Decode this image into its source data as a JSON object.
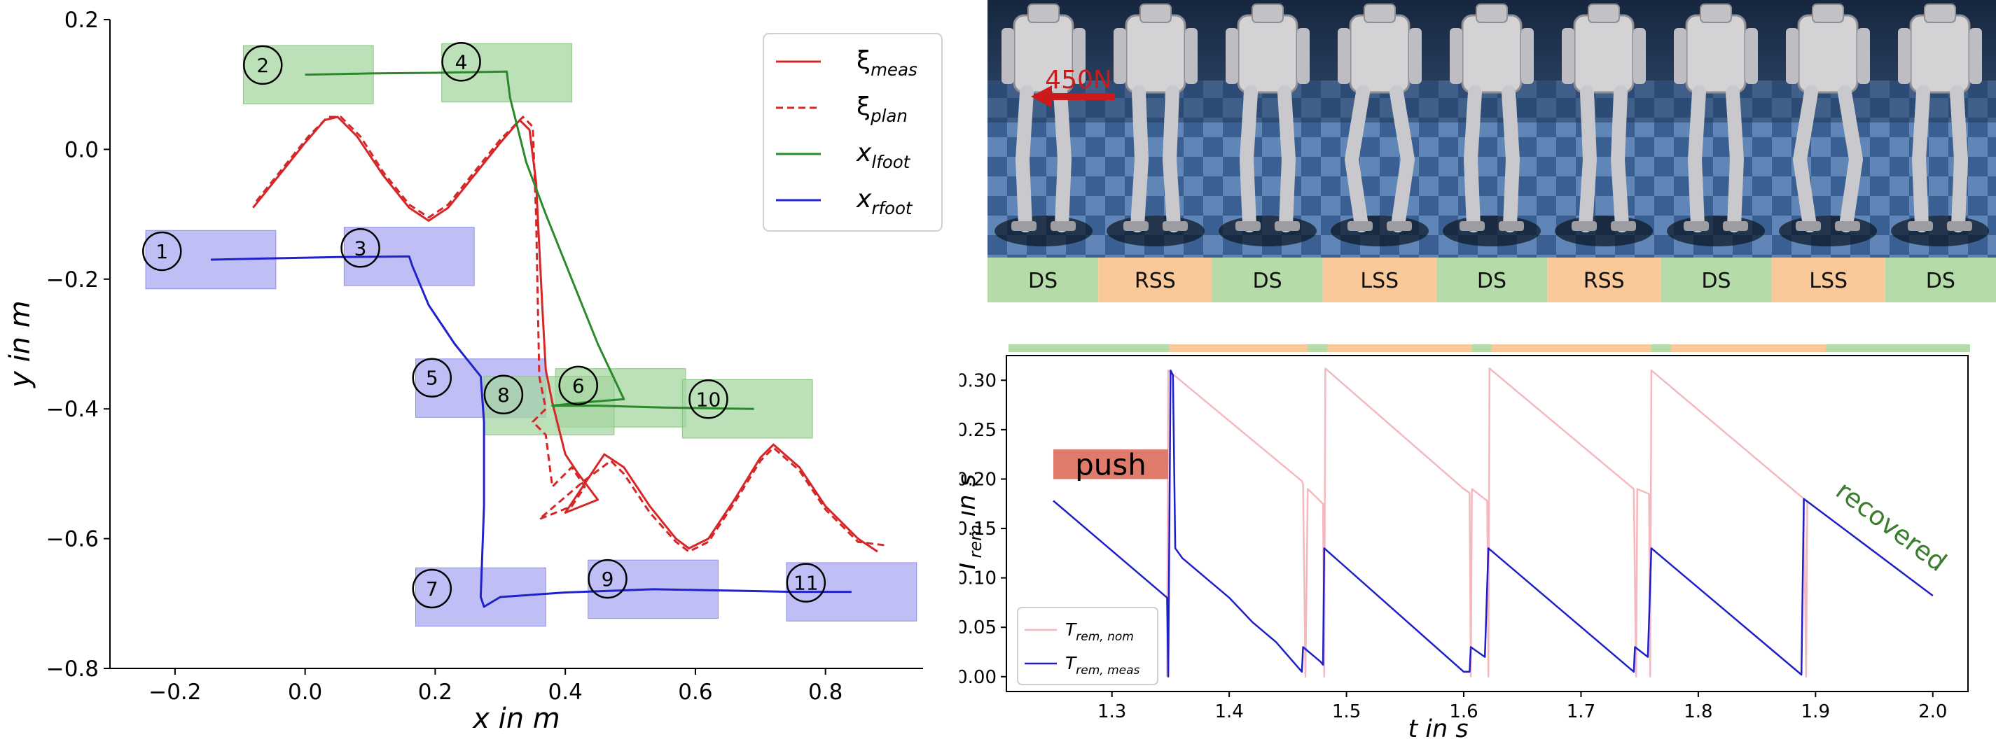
{
  "colors": {
    "meas": "#d62728",
    "plan": "#d62728",
    "lfoot": "#2a8a2a",
    "rfoot": "#2222cc",
    "ds_band": "#b5dba8",
    "ss_band": "#f9c99a",
    "step_green": "#a6d6a0",
    "step_blue": "#aaaaf2",
    "nom": "#f4b8bf",
    "measT": "#1f1fc8",
    "push": "#e07a6a",
    "recovered": "#3a7d2c",
    "force": "#cc1a1a"
  },
  "chart_data": [
    {
      "type": "line",
      "title": "",
      "xlabel": "x in m",
      "ylabel": "y in m",
      "xlim": [
        -0.3,
        0.95
      ],
      "ylim": [
        -0.8,
        0.2
      ],
      "xticks": [
        -0.2,
        0.0,
        0.2,
        0.4,
        0.6,
        0.8
      ],
      "xtick_labels": [
        "−0.2",
        "0.0",
        "0.2",
        "0.4",
        "0.6",
        "0.8"
      ],
      "yticks": [
        0.2,
        0.0,
        -0.2,
        -0.4,
        -0.6,
        -0.8
      ],
      "ytick_labels": [
        "0.2",
        "0.0",
        "−0.2",
        "−0.4",
        "−0.6",
        "−0.8"
      ],
      "legend": {
        "position": "top-right",
        "entries": [
          {
            "id": "meas",
            "label": "ξ",
            "sub": "meas",
            "style": "solid"
          },
          {
            "id": "plan",
            "label": "ξ",
            "sub": "plan",
            "style": "dashed"
          },
          {
            "id": "lfoot",
            "label": "x",
            "sub": "lfoot",
            "style": "solid"
          },
          {
            "id": "rfoot",
            "label": "x",
            "sub": "rfoot",
            "style": "solid"
          }
        ]
      },
      "footsteps": [
        {
          "n": "1",
          "foot": "r",
          "cx": -0.145,
          "cy": -0.17,
          "lx": -0.22,
          "ly": -0.157
        },
        {
          "n": "2",
          "foot": "l",
          "cx": 0.005,
          "cy": 0.115,
          "lx": -0.065,
          "ly": 0.13
        },
        {
          "n": "3",
          "foot": "r",
          "cx": 0.16,
          "cy": -0.165,
          "lx": 0.085,
          "ly": -0.152
        },
        {
          "n": "4",
          "foot": "l",
          "cx": 0.31,
          "cy": 0.118,
          "lx": 0.24,
          "ly": 0.135
        },
        {
          "n": "5",
          "foot": "r",
          "cx": 0.27,
          "cy": -0.368,
          "lx": 0.195,
          "ly": -0.352
        },
        {
          "n": "6",
          "foot": "l",
          "cx": 0.485,
          "cy": -0.383,
          "lx": 0.42,
          "ly": -0.364
        },
        {
          "n": "7",
          "foot": "r",
          "cx": 0.27,
          "cy": -0.69,
          "lx": 0.195,
          "ly": -0.677
        },
        {
          "n": "8",
          "foot": "l",
          "cx": 0.375,
          "cy": -0.395,
          "lx": 0.305,
          "ly": -0.378
        },
        {
          "n": "9",
          "foot": "r",
          "cx": 0.535,
          "cy": -0.678,
          "lx": 0.465,
          "ly": -0.662
        },
        {
          "n": "10",
          "foot": "l",
          "cx": 0.68,
          "cy": -0.4,
          "lx": 0.62,
          "ly": -0.385
        },
        {
          "n": "11",
          "foot": "r",
          "cx": 0.84,
          "cy": -0.682,
          "lx": 0.77,
          "ly": -0.668
        }
      ],
      "series": [
        {
          "name": "xi_meas",
          "color": "meas",
          "dash": false,
          "points": [
            [
              -0.08,
              -0.09
            ],
            [
              -0.04,
              -0.04
            ],
            [
              0.0,
              0.01
            ],
            [
              0.03,
              0.045
            ],
            [
              0.05,
              0.05
            ],
            [
              0.08,
              0.02
            ],
            [
              0.12,
              -0.04
            ],
            [
              0.16,
              -0.09
            ],
            [
              0.19,
              -0.11
            ],
            [
              0.22,
              -0.09
            ],
            [
              0.26,
              -0.04
            ],
            [
              0.3,
              0.01
            ],
            [
              0.33,
              0.045
            ],
            [
              0.345,
              0.03
            ],
            [
              0.355,
              -0.05
            ],
            [
              0.36,
              -0.15
            ],
            [
              0.365,
              -0.25
            ],
            [
              0.37,
              -0.34
            ],
            [
              0.38,
              -0.39
            ],
            [
              0.39,
              -0.43
            ],
            [
              0.4,
              -0.47
            ],
            [
              0.42,
              -0.5
            ],
            [
              0.45,
              -0.54
            ],
            [
              0.4,
              -0.56
            ],
            [
              0.44,
              -0.5
            ],
            [
              0.46,
              -0.47
            ],
            [
              0.49,
              -0.49
            ],
            [
              0.53,
              -0.55
            ],
            [
              0.57,
              -0.6
            ],
            [
              0.59,
              -0.615
            ],
            [
              0.62,
              -0.6
            ],
            [
              0.66,
              -0.54
            ],
            [
              0.7,
              -0.475
            ],
            [
              0.72,
              -0.455
            ],
            [
              0.76,
              -0.49
            ],
            [
              0.8,
              -0.55
            ],
            [
              0.85,
              -0.6
            ],
            [
              0.88,
              -0.62
            ]
          ]
        },
        {
          "name": "xi_plan",
          "color": "plan",
          "dash": true,
          "points": [
            [
              -0.075,
              -0.08
            ],
            [
              -0.035,
              -0.03
            ],
            [
              0.005,
              0.02
            ],
            [
              0.035,
              0.05
            ],
            [
              0.055,
              0.05
            ],
            [
              0.085,
              0.02
            ],
            [
              0.12,
              -0.035
            ],
            [
              0.16,
              -0.085
            ],
            [
              0.19,
              -0.105
            ],
            [
              0.22,
              -0.085
            ],
            [
              0.26,
              -0.035
            ],
            [
              0.3,
              0.015
            ],
            [
              0.335,
              0.05
            ],
            [
              0.35,
              0.035
            ],
            [
              0.355,
              -0.1
            ],
            [
              0.36,
              -0.35
            ],
            [
              0.37,
              -0.4
            ],
            [
              0.35,
              -0.42
            ],
            [
              0.37,
              -0.44
            ],
            [
              0.38,
              -0.52
            ],
            [
              0.41,
              -0.49
            ],
            [
              0.43,
              -0.52
            ],
            [
              0.41,
              -0.55
            ],
            [
              0.36,
              -0.57
            ],
            [
              0.43,
              -0.51
            ],
            [
              0.47,
              -0.48
            ],
            [
              0.49,
              -0.5
            ],
            [
              0.53,
              -0.56
            ],
            [
              0.57,
              -0.605
            ],
            [
              0.59,
              -0.62
            ],
            [
              0.62,
              -0.605
            ],
            [
              0.66,
              -0.545
            ],
            [
              0.7,
              -0.48
            ],
            [
              0.72,
              -0.46
            ],
            [
              0.76,
              -0.495
            ],
            [
              0.8,
              -0.555
            ],
            [
              0.85,
              -0.605
            ],
            [
              0.89,
              -0.61
            ]
          ]
        },
        {
          "name": "x_lfoot",
          "color": "lfoot",
          "dash": false,
          "points": [
            [
              0.0,
              0.115
            ],
            [
              0.1,
              0.117
            ],
            [
              0.2,
              0.118
            ],
            [
              0.31,
              0.12
            ],
            [
              0.315,
              0.08
            ],
            [
              0.34,
              -0.02
            ],
            [
              0.37,
              -0.1
            ],
            [
              0.41,
              -0.2
            ],
            [
              0.45,
              -0.3
            ],
            [
              0.49,
              -0.385
            ],
            [
              0.43,
              -0.39
            ],
            [
              0.38,
              -0.395
            ],
            [
              0.45,
              -0.395
            ],
            [
              0.55,
              -0.398
            ],
            [
              0.69,
              -0.4
            ]
          ]
        },
        {
          "name": "x_rfoot",
          "color": "rfoot",
          "dash": false,
          "points": [
            [
              -0.145,
              -0.17
            ],
            [
              -0.05,
              -0.168
            ],
            [
              0.05,
              -0.166
            ],
            [
              0.16,
              -0.165
            ],
            [
              0.165,
              -0.18
            ],
            [
              0.19,
              -0.24
            ],
            [
              0.23,
              -0.3
            ],
            [
              0.27,
              -0.35
            ],
            [
              0.275,
              -0.42
            ],
            [
              0.275,
              -0.55
            ],
            [
              0.27,
              -0.69
            ],
            [
              0.275,
              -0.705
            ],
            [
              0.3,
              -0.69
            ],
            [
              0.4,
              -0.683
            ],
            [
              0.535,
              -0.678
            ],
            [
              0.65,
              -0.68
            ],
            [
              0.75,
              -0.682
            ],
            [
              0.84,
              -0.682
            ]
          ]
        }
      ]
    },
    {
      "type": "line",
      "title": "",
      "xlabel": "t in s",
      "ylabel": "T",
      "ylabel_sub": "rem",
      "ylabel_rest": " in s",
      "xlim": [
        1.21,
        2.03
      ],
      "ylim": [
        -0.015,
        0.325
      ],
      "xticks": [
        1.3,
        1.4,
        1.5,
        1.6,
        1.7,
        1.8,
        1.9,
        2.0
      ],
      "xtick_labels": [
        "1.3",
        "1.4",
        "1.5",
        "1.6",
        "1.7",
        "1.8",
        "1.9",
        "2.0"
      ],
      "yticks": [
        0.0,
        0.05,
        0.1,
        0.15,
        0.2,
        0.25,
        0.3
      ],
      "ytick_labels": [
        "0.00",
        "0.05",
        "0.10",
        "0.15",
        "0.20",
        "0.25",
        "0.30"
      ],
      "phase_bar": [
        {
          "t0": 1.21,
          "t1": 1.347,
          "phase": "ds"
        },
        {
          "t0": 1.347,
          "t1": 1.465,
          "phase": "ss"
        },
        {
          "t0": 1.465,
          "t1": 1.482,
          "phase": "ds"
        },
        {
          "t0": 1.482,
          "t1": 1.605,
          "phase": "ss"
        },
        {
          "t0": 1.605,
          "t1": 1.622,
          "phase": "ds"
        },
        {
          "t0": 1.622,
          "t1": 1.758,
          "phase": "ss"
        },
        {
          "t0": 1.758,
          "t1": 1.775,
          "phase": "ds"
        },
        {
          "t0": 1.775,
          "t1": 1.907,
          "phase": "ss"
        },
        {
          "t0": 1.907,
          "t1": 2.03,
          "phase": "ds"
        }
      ],
      "legend": {
        "position": "bottom-left",
        "entries": [
          {
            "id": "nom",
            "label": "T",
            "sub": "rem, nom"
          },
          {
            "id": "measT",
            "label": "T",
            "sub": "rem, meas"
          }
        ]
      },
      "annotation_push": {
        "text": "push",
        "t0": 1.25,
        "t1": 1.348,
        "v0": 0.2,
        "v1": 0.23
      },
      "annotation_recovered": {
        "text": "recovered",
        "t": 1.96,
        "v": 0.145,
        "angle": 37
      },
      "series": [
        {
          "name": "T_rem_nom",
          "color": "nom",
          "points": [
            [
              1.347,
              0.0
            ],
            [
              1.348,
              0.31
            ],
            [
              1.462,
              0.198
            ],
            [
              1.463,
              0.195
            ],
            [
              1.465,
              0.0
            ],
            [
              1.467,
              0.19
            ],
            [
              1.48,
              0.175
            ],
            [
              1.481,
              0.0
            ],
            [
              1.482,
              0.312
            ],
            [
              1.6,
              0.19
            ],
            [
              1.605,
              0.186
            ],
            [
              1.606,
              0.0
            ],
            [
              1.607,
              0.19
            ],
            [
              1.62,
              0.178
            ],
            [
              1.621,
              0.0
            ],
            [
              1.622,
              0.312
            ],
            [
              1.745,
              0.19
            ],
            [
              1.747,
              0.0
            ],
            [
              1.748,
              0.19
            ],
            [
              1.758,
              0.185
            ],
            [
              1.759,
              0.0
            ],
            [
              1.76,
              0.31
            ],
            [
              1.89,
              0.18
            ],
            [
              1.892,
              0.0
            ],
            [
              1.893,
              0.178
            ]
          ]
        },
        {
          "name": "T_rem_meas",
          "color": "measT",
          "points": [
            [
              1.25,
              0.178
            ],
            [
              1.347,
              0.08
            ],
            [
              1.348,
              0.0
            ],
            [
              1.35,
              0.31
            ],
            [
              1.352,
              0.305
            ],
            [
              1.354,
              0.13
            ],
            [
              1.36,
              0.12
            ],
            [
              1.4,
              0.08
            ],
            [
              1.42,
              0.055
            ],
            [
              1.44,
              0.035
            ],
            [
              1.462,
              0.005
            ],
            [
              1.463,
              0.03
            ],
            [
              1.478,
              0.015
            ],
            [
              1.48,
              0.012
            ],
            [
              1.481,
              0.13
            ],
            [
              1.6,
              0.005
            ],
            [
              1.605,
              0.005
            ],
            [
              1.606,
              0.03
            ],
            [
              1.618,
              0.02
            ],
            [
              1.621,
              0.13
            ],
            [
              1.745,
              0.005
            ],
            [
              1.746,
              0.03
            ],
            [
              1.757,
              0.02
            ],
            [
              1.76,
              0.13
            ],
            [
              1.888,
              0.002
            ],
            [
              1.89,
              0.18
            ],
            [
              2.0,
              0.082
            ]
          ]
        }
      ]
    }
  ],
  "photo": {
    "force_label": "450N",
    "phases": [
      "DS",
      "RSS",
      "DS",
      "LSS",
      "DS",
      "RSS",
      "DS",
      "LSS",
      "DS"
    ]
  }
}
